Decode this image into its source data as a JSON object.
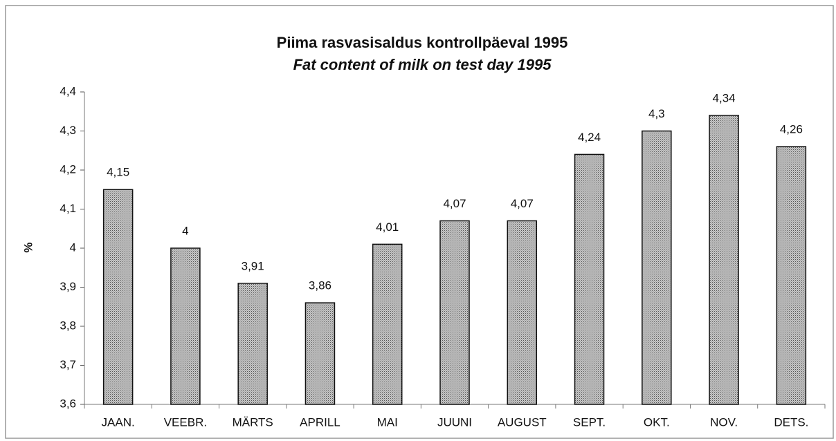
{
  "chart_data": {
    "type": "bar",
    "title": "Piima rasvasisaldus kontrollpäeval 1995",
    "subtitle": "Fat content of milk on test day 1995",
    "ylabel": "%",
    "categories": [
      "JAAN.",
      "VEEBR.",
      "MÄRTS",
      "APRILL",
      "MAI",
      "JUUNI",
      "AUGUST",
      "SEPT.",
      "OKT.",
      "NOV.",
      "DETS."
    ],
    "values": [
      4.15,
      4,
      3.91,
      3.86,
      4.01,
      4.07,
      4.07,
      4.24,
      4.3,
      4.34,
      4.26
    ],
    "value_labels": [
      "4,15",
      "4",
      "3,91",
      "3,86",
      "4,01",
      "4,07",
      "4,07",
      "4,24",
      "4,3",
      "4,34",
      "4,26"
    ],
    "color": "#b8b8b8",
    "ylim": [
      3.6,
      4.4
    ],
    "yticks": [
      {
        "value": 3.6,
        "label": "3,6"
      },
      {
        "value": 3.7,
        "label": "3,7"
      },
      {
        "value": 3.8,
        "label": "3,8"
      },
      {
        "value": 3.9,
        "label": "3,9"
      },
      4,
      {
        "value": 4.1,
        "label": "4,1"
      },
      {
        "value": 4.2,
        "label": "4,2"
      },
      {
        "value": 4.3,
        "label": "4,3"
      },
      {
        "value": 4.4,
        "label": "4,4"
      }
    ],
    "grid": false
  }
}
